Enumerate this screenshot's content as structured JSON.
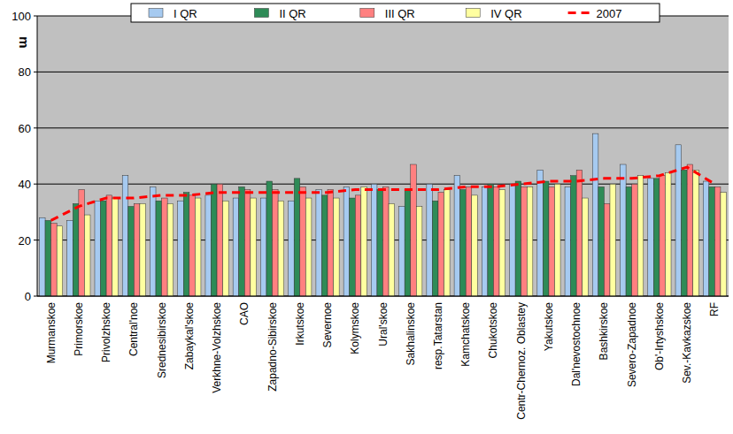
{
  "chart_data": {
    "type": "bar",
    "y_label": "m",
    "categories": [
      "Murmanskoe",
      "Primorskoe",
      "Privolzhskoe",
      "Central'noe",
      "Srednesibirskoe",
      "Zabaykal'skoe",
      "Verkhne-Volzhskoe",
      "CAO",
      "Zapadno-Sibirskoe",
      "Irkutskoe",
      "Severnoe",
      "Kolymskoe",
      "Ural'skoe",
      "Sakhalinskoe",
      "resp.Tatarstan",
      "Kamchatskoe",
      "Chukotskoe",
      "Centr-Chernoz. Oblastey",
      "Yakutskoe",
      "Dal'nevostochnoe",
      "Bashkirskoe",
      "Severo-Zapadnoe",
      "Ob'-Irtyshskoe",
      "Sev.-Kavkazskoe",
      "RF"
    ],
    "series": [
      {
        "name": "I QR",
        "type": "bar",
        "color": "#a6caf0",
        "values": [
          28,
          27,
          34,
          43,
          39,
          34,
          36,
          35,
          35,
          34,
          38,
          39,
          40,
          32,
          40,
          43,
          39,
          40,
          45,
          39,
          58,
          47,
          42,
          54,
          41
        ]
      },
      {
        "name": "II QR",
        "type": "bar",
        "color": "#2e8b57",
        "values": [
          27,
          33,
          34,
          32,
          34,
          37,
          40,
          39,
          41,
          42,
          36,
          35,
          38,
          38,
          34,
          38,
          40,
          41,
          41,
          43,
          39,
          39,
          42,
          45,
          39
        ]
      },
      {
        "name": "III QR",
        "type": "bar",
        "color": "#ff8080",
        "values": [
          26,
          38,
          36,
          33,
          35,
          36,
          40,
          38,
          38,
          39,
          38,
          36,
          39,
          47,
          37,
          39,
          39,
          39,
          39,
          45,
          33,
          40,
          43,
          47,
          39
        ]
      },
      {
        "name": "IV QR",
        "type": "bar",
        "color": "#ffffa0",
        "values": [
          25,
          29,
          35,
          33,
          33,
          35,
          34,
          35,
          34,
          35,
          35,
          39,
          33,
          32,
          38,
          36,
          38,
          39,
          40,
          35,
          40,
          43,
          44,
          45,
          37
        ]
      },
      {
        "name": "2007",
        "type": "line",
        "color": "#ff0000",
        "line_style": "dashed",
        "values": [
          27,
          32,
          35,
          35,
          36,
          36,
          37,
          37,
          37,
          37,
          37,
          38,
          38,
          38,
          38,
          39,
          39,
          40,
          41,
          41,
          42,
          42,
          43,
          46,
          40
        ]
      }
    ],
    "ylim": [
      0,
      100
    ],
    "yticks": [
      0,
      20,
      40,
      60,
      80,
      100
    ],
    "grid": true,
    "legend": "top"
  }
}
